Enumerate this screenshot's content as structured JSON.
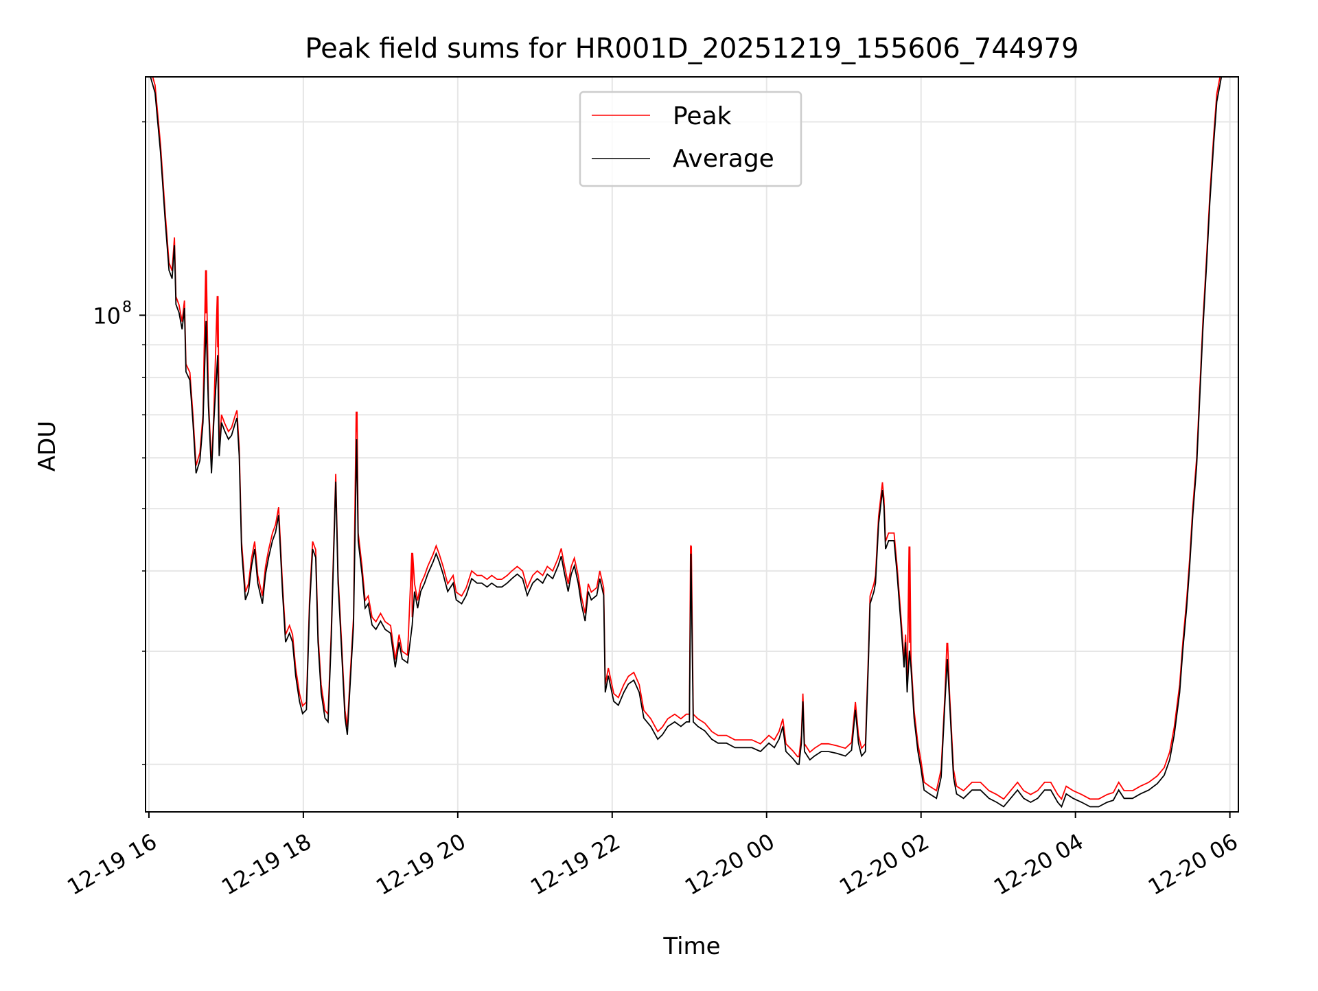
{
  "chart_data": {
    "type": "line",
    "title": "Peak field sums for HR001D_20251219_155606_744979",
    "xlabel": "Time",
    "ylabel": "ADU",
    "yscale": "log",
    "x_units": "hours since 12-19 16:00",
    "xlim": [
      -0.044,
      14.11
    ],
    "ylim_log10": [
      7.227,
      8.371
    ],
    "x_ticks": [
      {
        "value": 0,
        "label": "12-19 16"
      },
      {
        "value": 2,
        "label": "12-19 18"
      },
      {
        "value": 4,
        "label": "12-19 20"
      },
      {
        "value": 6,
        "label": "12-19 22"
      },
      {
        "value": 8,
        "label": "12-20 00"
      },
      {
        "value": 10,
        "label": "12-20 02"
      },
      {
        "value": 12,
        "label": "12-20 04"
      },
      {
        "value": 14,
        "label": "12-20 06"
      }
    ],
    "y_major_ticks": [
      {
        "value_log10": 8,
        "base": "10",
        "exp": "8"
      }
    ],
    "y_minor_ticks_log10": [
      7.301,
      7.477,
      7.602,
      7.699,
      7.778,
      7.845,
      7.903,
      7.954,
      8.301
    ],
    "grid": true,
    "legend": {
      "placement": "top-center",
      "entries": [
        {
          "label": "Peak",
          "color": "#ff0000"
        },
        {
          "label": "Average",
          "color": "#000000"
        }
      ]
    },
    "series": [
      {
        "name": "Average",
        "color": "#000000",
        "points_log10": [
          [
            0.02,
            8.371
          ],
          [
            0.08,
            8.346
          ],
          [
            0.15,
            8.254
          ],
          [
            0.21,
            8.148
          ],
          [
            0.26,
            8.07
          ],
          [
            0.3,
            8.057
          ],
          [
            0.33,
            8.109
          ],
          [
            0.35,
            8.017
          ],
          [
            0.39,
            8.004
          ],
          [
            0.43,
            7.978
          ],
          [
            0.46,
            8.011
          ],
          [
            0.48,
            7.912
          ],
          [
            0.53,
            7.899
          ],
          [
            0.57,
            7.833
          ],
          [
            0.61,
            7.754
          ],
          [
            0.66,
            7.774
          ],
          [
            0.7,
            7.833
          ],
          [
            0.74,
            7.991
          ],
          [
            0.77,
            7.859
          ],
          [
            0.81,
            7.754
          ],
          [
            0.84,
            7.833
          ],
          [
            0.89,
            7.938
          ],
          [
            0.91,
            7.781
          ],
          [
            0.94,
            7.833
          ],
          [
            0.98,
            7.82
          ],
          [
            1.03,
            7.807
          ],
          [
            1.07,
            7.813
          ],
          [
            1.12,
            7.833
          ],
          [
            1.14,
            7.84
          ],
          [
            1.17,
            7.781
          ],
          [
            1.2,
            7.636
          ],
          [
            1.25,
            7.557
          ],
          [
            1.29,
            7.57
          ],
          [
            1.33,
            7.61
          ],
          [
            1.37,
            7.636
          ],
          [
            1.41,
            7.583
          ],
          [
            1.47,
            7.551
          ],
          [
            1.51,
            7.597
          ],
          [
            1.55,
            7.623
          ],
          [
            1.6,
            7.649
          ],
          [
            1.64,
            7.662
          ],
          [
            1.68,
            7.689
          ],
          [
            1.73,
            7.57
          ],
          [
            1.77,
            7.491
          ],
          [
            1.82,
            7.505
          ],
          [
            1.86,
            7.491
          ],
          [
            1.9,
            7.439
          ],
          [
            1.95,
            7.399
          ],
          [
            1.99,
            7.38
          ],
          [
            2.04,
            7.386
          ],
          [
            2.08,
            7.544
          ],
          [
            2.12,
            7.636
          ],
          [
            2.16,
            7.623
          ],
          [
            2.19,
            7.491
          ],
          [
            2.23,
            7.413
          ],
          [
            2.28,
            7.373
          ],
          [
            2.32,
            7.367
          ],
          [
            2.36,
            7.491
          ],
          [
            2.42,
            7.741
          ],
          [
            2.45,
            7.583
          ],
          [
            2.49,
            7.491
          ],
          [
            2.54,
            7.373
          ],
          [
            2.57,
            7.347
          ],
          [
            2.6,
            7.413
          ],
          [
            2.65,
            7.518
          ],
          [
            2.69,
            7.807
          ],
          [
            2.71,
            7.649
          ],
          [
            2.76,
            7.597
          ],
          [
            2.8,
            7.544
          ],
          [
            2.84,
            7.551
          ],
          [
            2.89,
            7.518
          ],
          [
            2.94,
            7.511
          ],
          [
            3.0,
            7.524
          ],
          [
            3.06,
            7.511
          ],
          [
            3.13,
            7.505
          ],
          [
            3.19,
            7.452
          ],
          [
            3.24,
            7.491
          ],
          [
            3.28,
            7.465
          ],
          [
            3.35,
            7.459
          ],
          [
            3.41,
            7.518
          ],
          [
            3.44,
            7.57
          ],
          [
            3.48,
            7.544
          ],
          [
            3.52,
            7.57
          ],
          [
            3.57,
            7.583
          ],
          [
            3.61,
            7.597
          ],
          [
            3.68,
            7.616
          ],
          [
            3.72,
            7.629
          ],
          [
            3.76,
            7.616
          ],
          [
            3.81,
            7.597
          ],
          [
            3.87,
            7.57
          ],
          [
            3.94,
            7.583
          ],
          [
            3.98,
            7.557
          ],
          [
            4.05,
            7.551
          ],
          [
            4.11,
            7.564
          ],
          [
            4.18,
            7.59
          ],
          [
            4.25,
            7.583
          ],
          [
            4.31,
            7.583
          ],
          [
            4.38,
            7.577
          ],
          [
            4.44,
            7.583
          ],
          [
            4.51,
            7.577
          ],
          [
            4.57,
            7.577
          ],
          [
            4.64,
            7.583
          ],
          [
            4.7,
            7.59
          ],
          [
            4.77,
            7.597
          ],
          [
            4.84,
            7.59
          ],
          [
            4.9,
            7.564
          ],
          [
            4.97,
            7.583
          ],
          [
            5.03,
            7.59
          ],
          [
            5.1,
            7.583
          ],
          [
            5.16,
            7.597
          ],
          [
            5.23,
            7.59
          ],
          [
            5.3,
            7.61
          ],
          [
            5.34,
            7.625
          ],
          [
            5.38,
            7.599
          ],
          [
            5.43,
            7.57
          ],
          [
            5.47,
            7.597
          ],
          [
            5.51,
            7.61
          ],
          [
            5.56,
            7.583
          ],
          [
            5.6,
            7.551
          ],
          [
            5.65,
            7.524
          ],
          [
            5.69,
            7.57
          ],
          [
            5.73,
            7.557
          ],
          [
            5.8,
            7.564
          ],
          [
            5.84,
            7.59
          ],
          [
            5.89,
            7.564
          ],
          [
            5.91,
            7.413
          ],
          [
            5.95,
            7.439
          ],
          [
            6.02,
            7.399
          ],
          [
            6.08,
            7.393
          ],
          [
            6.15,
            7.413
          ],
          [
            6.21,
            7.426
          ],
          [
            6.28,
            7.432
          ],
          [
            6.35,
            7.413
          ],
          [
            6.41,
            7.373
          ],
          [
            6.5,
            7.36
          ],
          [
            6.59,
            7.34
          ],
          [
            6.65,
            7.347
          ],
          [
            6.72,
            7.36
          ],
          [
            6.81,
            7.367
          ],
          [
            6.89,
            7.36
          ],
          [
            6.96,
            7.367
          ],
          [
            7.0,
            7.367
          ],
          [
            7.02,
            7.629
          ],
          [
            7.05,
            7.367
          ],
          [
            7.11,
            7.36
          ],
          [
            7.2,
            7.353
          ],
          [
            7.29,
            7.34
          ],
          [
            7.37,
            7.334
          ],
          [
            7.48,
            7.334
          ],
          [
            7.59,
            7.327
          ],
          [
            7.7,
            7.327
          ],
          [
            7.81,
            7.327
          ],
          [
            7.92,
            7.321
          ],
          [
            8.03,
            7.334
          ],
          [
            8.1,
            7.327
          ],
          [
            8.16,
            7.34
          ],
          [
            8.21,
            7.36
          ],
          [
            8.25,
            7.321
          ],
          [
            8.34,
            7.31
          ],
          [
            8.4,
            7.301
          ],
          [
            8.42,
            7.301
          ],
          [
            8.45,
            7.334
          ],
          [
            8.47,
            7.399
          ],
          [
            8.49,
            7.321
          ],
          [
            8.56,
            7.308
          ],
          [
            8.62,
            7.314
          ],
          [
            8.71,
            7.321
          ],
          [
            8.8,
            7.321
          ],
          [
            8.91,
            7.318
          ],
          [
            9.02,
            7.314
          ],
          [
            9.1,
            7.323
          ],
          [
            9.15,
            7.386
          ],
          [
            9.19,
            7.334
          ],
          [
            9.23,
            7.314
          ],
          [
            9.28,
            7.321
          ],
          [
            9.32,
            7.465
          ],
          [
            9.34,
            7.551
          ],
          [
            9.39,
            7.57
          ],
          [
            9.41,
            7.583
          ],
          [
            9.45,
            7.675
          ],
          [
            9.5,
            7.728
          ],
          [
            9.52,
            7.702
          ],
          [
            9.54,
            7.636
          ],
          [
            9.58,
            7.649
          ],
          [
            9.63,
            7.649
          ],
          [
            9.65,
            7.649
          ],
          [
            9.69,
            7.597
          ],
          [
            9.74,
            7.518
          ],
          [
            9.78,
            7.452
          ],
          [
            9.8,
            7.491
          ],
          [
            9.82,
            7.413
          ],
          [
            9.85,
            7.478
          ],
          [
            9.87,
            7.452
          ],
          [
            9.91,
            7.373
          ],
          [
            9.96,
            7.321
          ],
          [
            10.0,
            7.294
          ],
          [
            10.04,
            7.261
          ],
          [
            10.11,
            7.255
          ],
          [
            10.2,
            7.248
          ],
          [
            10.26,
            7.281
          ],
          [
            10.31,
            7.399
          ],
          [
            10.34,
            7.465
          ],
          [
            10.37,
            7.399
          ],
          [
            10.42,
            7.281
          ],
          [
            10.46,
            7.255
          ],
          [
            10.55,
            7.248
          ],
          [
            10.66,
            7.261
          ],
          [
            10.77,
            7.261
          ],
          [
            10.88,
            7.248
          ],
          [
            10.98,
            7.242
          ],
          [
            11.07,
            7.235
          ],
          [
            11.16,
            7.248
          ],
          [
            11.25,
            7.261
          ],
          [
            11.33,
            7.248
          ],
          [
            11.42,
            7.242
          ],
          [
            11.51,
            7.248
          ],
          [
            11.6,
            7.261
          ],
          [
            11.68,
            7.261
          ],
          [
            11.77,
            7.242
          ],
          [
            11.82,
            7.235
          ],
          [
            11.88,
            7.255
          ],
          [
            11.97,
            7.248
          ],
          [
            12.08,
            7.242
          ],
          [
            12.19,
            7.235
          ],
          [
            12.3,
            7.235
          ],
          [
            12.41,
            7.242
          ],
          [
            12.49,
            7.245
          ],
          [
            12.56,
            7.261
          ],
          [
            12.63,
            7.248
          ],
          [
            12.74,
            7.248
          ],
          [
            12.84,
            7.255
          ],
          [
            12.95,
            7.261
          ],
          [
            13.06,
            7.271
          ],
          [
            13.15,
            7.284
          ],
          [
            13.22,
            7.308
          ],
          [
            13.28,
            7.347
          ],
          [
            13.35,
            7.413
          ],
          [
            13.39,
            7.478
          ],
          [
            13.44,
            7.544
          ],
          [
            13.48,
            7.61
          ],
          [
            13.52,
            7.689
          ],
          [
            13.57,
            7.767
          ],
          [
            13.61,
            7.873
          ],
          [
            13.65,
            7.978
          ],
          [
            13.7,
            8.083
          ],
          [
            13.74,
            8.175
          ],
          [
            13.79,
            8.267
          ],
          [
            13.83,
            8.332
          ],
          [
            13.89,
            8.371
          ]
        ]
      },
      {
        "name": "Peak",
        "color": "#ff0000",
        "offset_above_average_log10": 0.012,
        "spikes_log10": [
          [
            0.74,
            8.07
          ],
          [
            0.89,
            8.03
          ],
          [
            2.69,
            7.85
          ],
          [
            3.41,
            7.63
          ],
          [
            7.02,
            7.64
          ],
          [
            9.85,
            7.64
          ],
          [
            10.34,
            7.49
          ]
        ]
      }
    ]
  }
}
